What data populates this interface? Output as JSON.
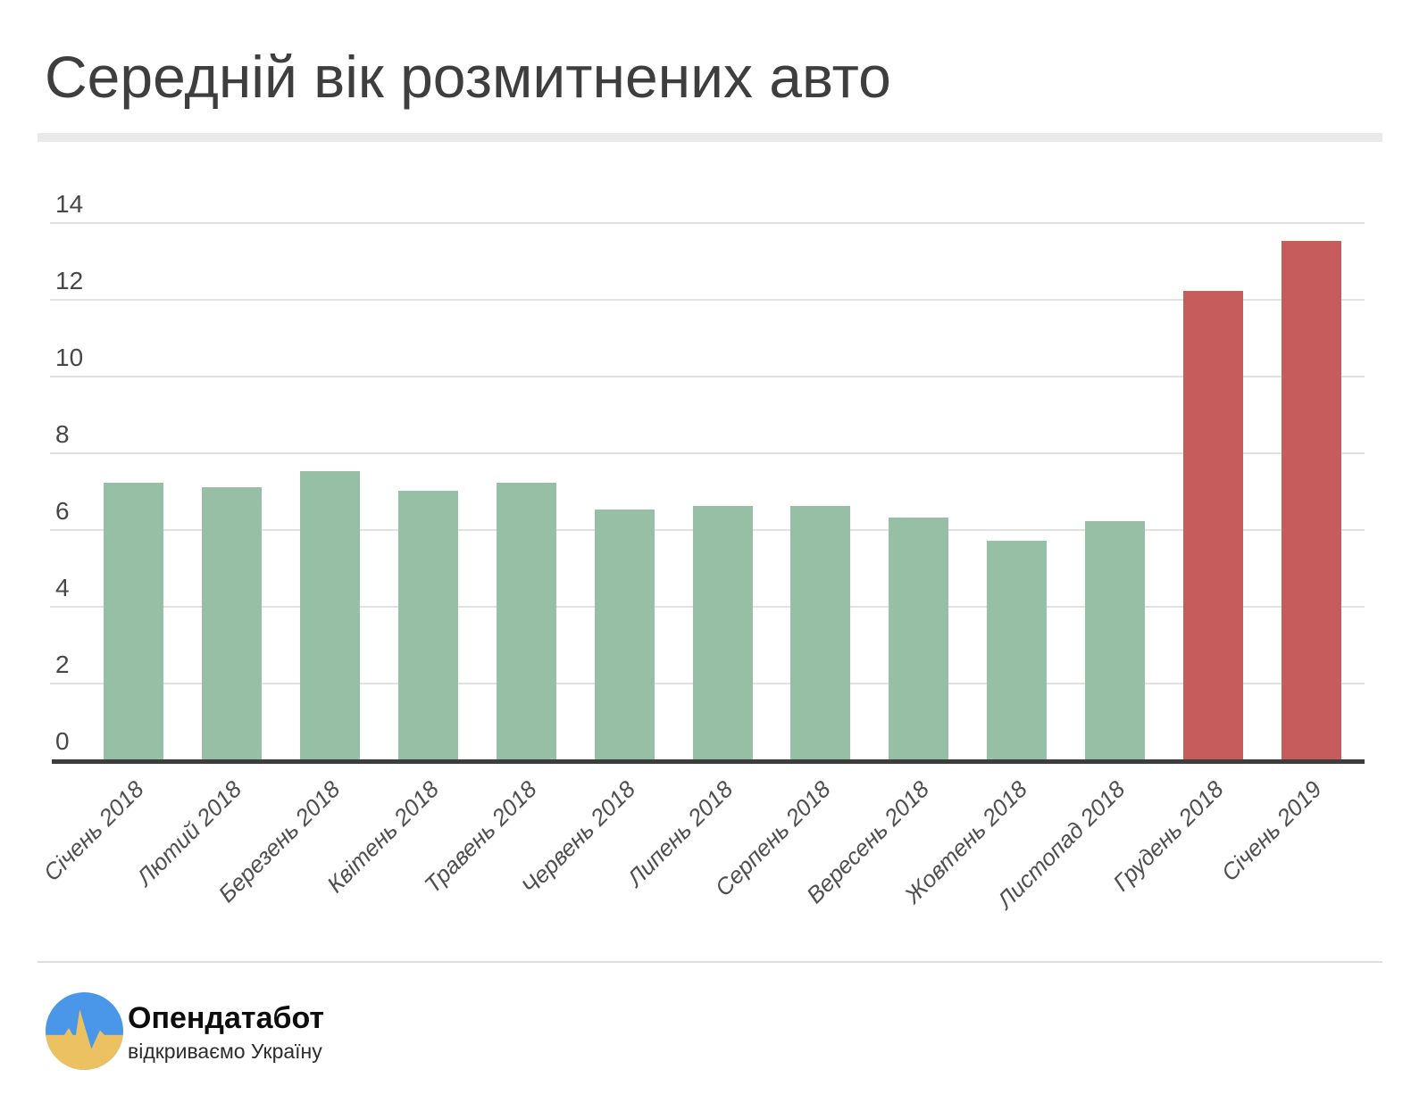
{
  "title": "Середній вік розмитнених авто",
  "chart_data": {
    "type": "bar",
    "title": "Середній вік розмитнених авто",
    "categories": [
      "Січень 2018",
      "Лютий 2018",
      "Березень 2018",
      "Квітень 2018",
      "Травень 2018",
      "Червень 2018",
      "Липень 2018",
      "Серпень 2018",
      "Вересень 2018",
      "Жовтень 2018",
      "Листопад 2018",
      "Грудень 2018",
      "Січень 2019"
    ],
    "values": [
      7.2,
      7.1,
      7.5,
      7.0,
      7.2,
      6.5,
      6.6,
      6.6,
      6.3,
      5.7,
      6.2,
      12.2,
      13.5
    ],
    "xlabel": "",
    "ylabel": "",
    "ylim": [
      0,
      14
    ],
    "yticks": [
      0,
      2,
      4,
      6,
      8,
      10,
      12,
      14
    ],
    "grid": true,
    "legend": false,
    "bar_color": "#96bfa5",
    "highlight_color": "#c75c5c",
    "highlight_indices": [
      11,
      12
    ],
    "x_label_style": "italic, rotated 45 degrees"
  },
  "footer": {
    "brand_name": "Опендатабот",
    "brand_tagline": "відкриваємо Україну",
    "logo_colors": {
      "blue": "#4a97e9",
      "yellow": "#ecc161"
    }
  }
}
